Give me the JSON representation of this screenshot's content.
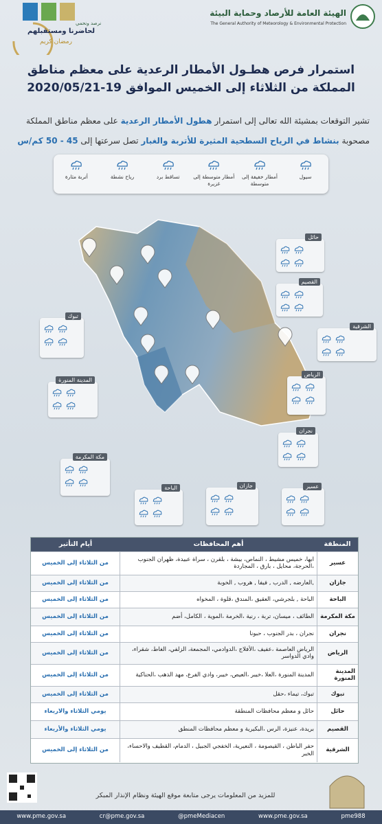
{
  "header": {
    "org_ar": "الهيئة العامة للأرصاد وحماية البيئة",
    "org_en": "The General Authority of Meteorology & Environmental Protection",
    "slogan": "نرصد ونحمي",
    "slogan2": "لحاضرنا ومستقبلهم",
    "ramadan": "رمضان كريم"
  },
  "title": [
    "استمرار فرص هطـول الأمطار الرعدية على معظم مناطق",
    "المملكة من الثلاثاء إلى الخميس الموافق 19-2020/05/21"
  ],
  "intro": [
    "تشير التوقعات بمشيئة الله تعالى إلى استمرار ",
    "هطول الأمطار الرعدية",
    " على معظم مناطق المملكة مصحوبة ",
    "بنشاط في الرياح السطحية المثيرة للأتربة والغبار",
    " تصل سرعتها إلى ",
    "45 - 50 كم/س"
  ],
  "legend": [
    "سيول",
    "أمطار خفيفة إلى متوسطة",
    "أمطار متوسطة إلى غزيرة",
    "تساقط برد",
    "رياح نشطة",
    "أتربة مثارة"
  ],
  "regions": [
    "حائل",
    "القصيم",
    "الشرقية",
    "تبوك",
    "المدينة المنورة",
    "الرياض",
    "نجران",
    "مكة المكرمة",
    "الباحة",
    "جازان",
    "عسير"
  ],
  "table": {
    "headers": [
      "المنطقة",
      "أهم المحافظات",
      "أيام التأثير"
    ],
    "rows": [
      [
        "عسير",
        "ابها، خميس مشيط ، النماص، بيشة ، بلقرن ، سراة عبيدة، ظهران الجنوب ،الحرجة، محايل ، بارق ، المجاردة",
        "من الثلاثاء إلى الخميس"
      ],
      [
        "جازان",
        ",العارضه , الدرب , فيفا , هروب , الخوبة",
        "من الثلاثاء إلى الخميس"
      ],
      [
        "الباحة",
        "الباحة , بلجرشي، العقيق ،المندق ،قلوة ، المخواه",
        "من الثلاثاء إلى الخميس"
      ],
      [
        "مكة المكرمة",
        "الطائف ، ميسان، تربة ، رنية ،الخرمة ،الموية ، الكامل، أضم",
        "من الثلاثاء إلى الخميس"
      ],
      [
        "نجران",
        "نجران ، بدر الجنوب ، حبونا",
        "من الثلاثاء إلى الخميس"
      ],
      [
        "الرياض",
        "الرياض العاصمة ،عفيف ،الأفلاج ،الدوادمي، المجمعة، الزلفي، الغاط، شقراء، وادي الدواسر",
        "من الثلاثاء إلى الخميس"
      ],
      [
        "المدينة المنورة",
        "المدينة المنورة ،العلا ،خيبر ،العيص، خيبر، وادي الفرع، مهد الذهب ،الحناكية",
        "من الثلاثاء إلى الخميس"
      ],
      [
        "تبوك",
        "تبوك، تيماء ،حقل",
        "من الثلاثاء إلى الخميس"
      ],
      [
        "حائل",
        "حائل و معظم محافظات المنطقة",
        "يومي الثلاثاء والاربعاء"
      ],
      [
        "القصيم",
        "بريدة، عنيزة، الرس ،البكيرية و معظم محافظات المنطق",
        "يومي الثلاثاء والأربعاء"
      ],
      [
        "الشرقية",
        "حفر الباطن ، القيصومة ، النعيرية، الخفجي الجبيل ، الدمام، القطيف والاحساء، الخبر",
        "من الثلاثاء إلى الخميس"
      ]
    ]
  },
  "footer": {
    "note": "للمزيد من المعلومات يرجى متابعة موقع الهيئة ونظام الإنذار المبكر",
    "links": [
      "www.pme.gov.sa",
      "cr@pme.gov.sa",
      "@pmeMediacen",
      "www.pme.gov.sa",
      "pme988"
    ]
  }
}
